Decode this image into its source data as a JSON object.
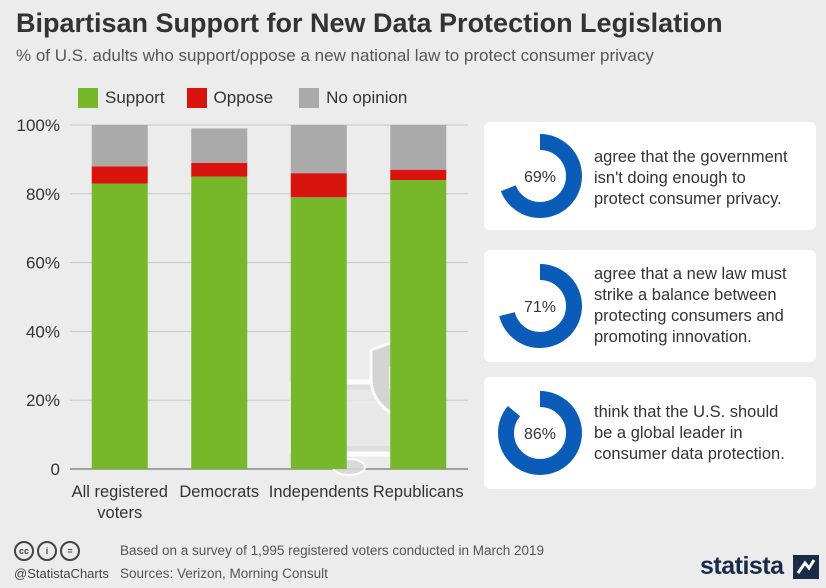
{
  "header": {
    "title": "Bipartisan Support for New Data Protection Legislation",
    "subtitle": "% of U.S. adults who support/oppose a new national law to protect consumer privacy"
  },
  "legend": [
    {
      "label": "Support",
      "color": "#77b82a"
    },
    {
      "label": "Oppose",
      "color": "#d9140f"
    },
    {
      "label": "No opinion",
      "color": "#aaaaaa"
    }
  ],
  "chart_data": {
    "type": "bar",
    "stacked": true,
    "categories": [
      "All registered voters",
      "Democrats",
      "Independents",
      "Republicans"
    ],
    "category_lines": [
      [
        "All registered",
        "voters"
      ],
      [
        "Democrats"
      ],
      [
        "Independents"
      ],
      [
        "Republicans"
      ]
    ],
    "series": [
      {
        "name": "Support",
        "color": "#77b82a",
        "values": [
          83,
          85,
          79,
          84
        ]
      },
      {
        "name": "Oppose",
        "color": "#d9140f",
        "values": [
          5,
          4,
          7,
          3
        ]
      },
      {
        "name": "No opinion",
        "color": "#aaaaaa",
        "values": [
          12,
          10,
          14,
          13
        ]
      }
    ],
    "ylim": [
      0,
      100
    ],
    "yticks": [
      0,
      20,
      40,
      60,
      80,
      100
    ],
    "ytick_labels": [
      "0",
      "20%",
      "40%",
      "60%",
      "80%",
      "100%"
    ],
    "title": "Bipartisan Support for New Data Protection Legislation",
    "xlabel": "",
    "ylabel": ""
  },
  "cards": [
    {
      "percent": 69,
      "label": "69%",
      "lines": [
        "agree that the government",
        "isn't doing enough to",
        "protect consumer privacy."
      ]
    },
    {
      "percent": 71,
      "label": "71%",
      "lines": [
        "agree that a new law must",
        "strike a balance between",
        "protecting consumers and",
        "promoting innovation."
      ]
    },
    {
      "percent": 86,
      "label": "86%",
      "lines": [
        "think that the U.S. should",
        "be a global leader in",
        "consumer data protection."
      ]
    }
  ],
  "footer": {
    "handle": "@StatistaCharts",
    "note": "Based on a survey of 1,995 registered voters conducted in March 2019",
    "sources": "Sources: Verizon, Morning Consult",
    "brand": "statista",
    "icons": [
      "cc-icon",
      "by-icon",
      "nd-icon"
    ],
    "icon_glyphs": [
      "cc",
      "i",
      "="
    ]
  },
  "colors": {
    "ring": "#0a5cb8",
    "background": "#ececec",
    "card": "#ffffff"
  }
}
